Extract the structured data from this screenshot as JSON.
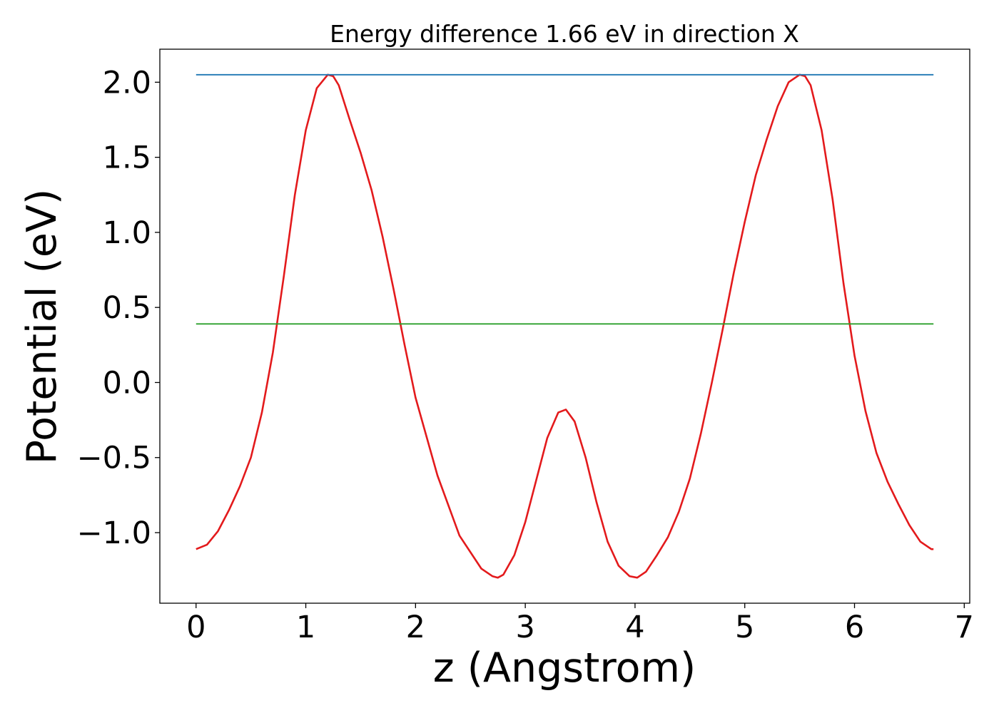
{
  "chart_data": {
    "type": "line",
    "title": "Energy difference 1.66 eV in direction X",
    "xlabel": "z (Angstrom)",
    "ylabel": "Potential (eV)",
    "xlim": [
      -0.33,
      7.05
    ],
    "ylim": [
      -1.47,
      2.22
    ],
    "x_ticks": [
      0,
      1,
      2,
      3,
      4,
      5,
      6,
      7
    ],
    "x_tick_labels": [
      "0",
      "1",
      "2",
      "3",
      "4",
      "5",
      "6",
      "7"
    ],
    "y_ticks": [
      -1.0,
      -0.5,
      0.0,
      0.5,
      1.0,
      1.5,
      2.0
    ],
    "y_tick_labels": [
      "−1.0",
      "−0.5",
      "0.0",
      "0.5",
      "1.0",
      "1.5",
      "2.0"
    ],
    "grid": false,
    "legend": "none",
    "series": [
      {
        "color": "#e31a1c",
        "x": [
          0.0,
          0.1,
          0.2,
          0.3,
          0.4,
          0.5,
          0.6,
          0.7,
          0.8,
          0.9,
          1.0,
          1.1,
          1.2,
          1.25,
          1.3,
          1.4,
          1.5,
          1.6,
          1.7,
          1.8,
          1.9,
          2.0,
          2.2,
          2.4,
          2.6,
          2.7,
          2.75,
          2.8,
          2.9,
          3.0,
          3.1,
          3.2,
          3.3,
          3.37,
          3.45,
          3.55,
          3.65,
          3.75,
          3.85,
          3.95,
          4.02,
          4.1,
          4.2,
          4.3,
          4.4,
          4.5,
          4.6,
          4.7,
          4.8,
          4.9,
          5.0,
          5.1,
          5.2,
          5.3,
          5.4,
          5.5,
          5.55,
          5.6,
          5.7,
          5.8,
          5.9,
          6.0,
          6.1,
          6.2,
          6.3,
          6.4,
          6.5,
          6.6,
          6.7,
          6.72
        ],
        "y": [
          -1.11,
          -1.08,
          -0.99,
          -0.85,
          -0.69,
          -0.5,
          -0.2,
          0.2,
          0.71,
          1.25,
          1.68,
          1.96,
          2.05,
          2.04,
          1.98,
          1.75,
          1.53,
          1.28,
          0.97,
          0.62,
          0.25,
          -0.1,
          -0.62,
          -1.02,
          -1.24,
          -1.29,
          -1.3,
          -1.28,
          -1.15,
          -0.93,
          -0.65,
          -0.37,
          -0.2,
          -0.18,
          -0.26,
          -0.5,
          -0.8,
          -1.06,
          -1.22,
          -1.29,
          -1.3,
          -1.26,
          -1.15,
          -1.03,
          -0.86,
          -0.64,
          -0.34,
          0.0,
          0.36,
          0.73,
          1.07,
          1.38,
          1.62,
          1.84,
          2.0,
          2.05,
          2.04,
          1.98,
          1.68,
          1.22,
          0.66,
          0.18,
          -0.19,
          -0.47,
          -0.66,
          -0.81,
          -0.95,
          -1.06,
          -1.11,
          -1.11
        ]
      },
      {
        "color": "#1f77b4",
        "x": [
          0.0,
          6.72
        ],
        "y": [
          2.05,
          2.05
        ]
      },
      {
        "color": "#2ca02c",
        "x": [
          0.0,
          6.72
        ],
        "y": [
          0.39,
          0.39
        ]
      }
    ]
  }
}
